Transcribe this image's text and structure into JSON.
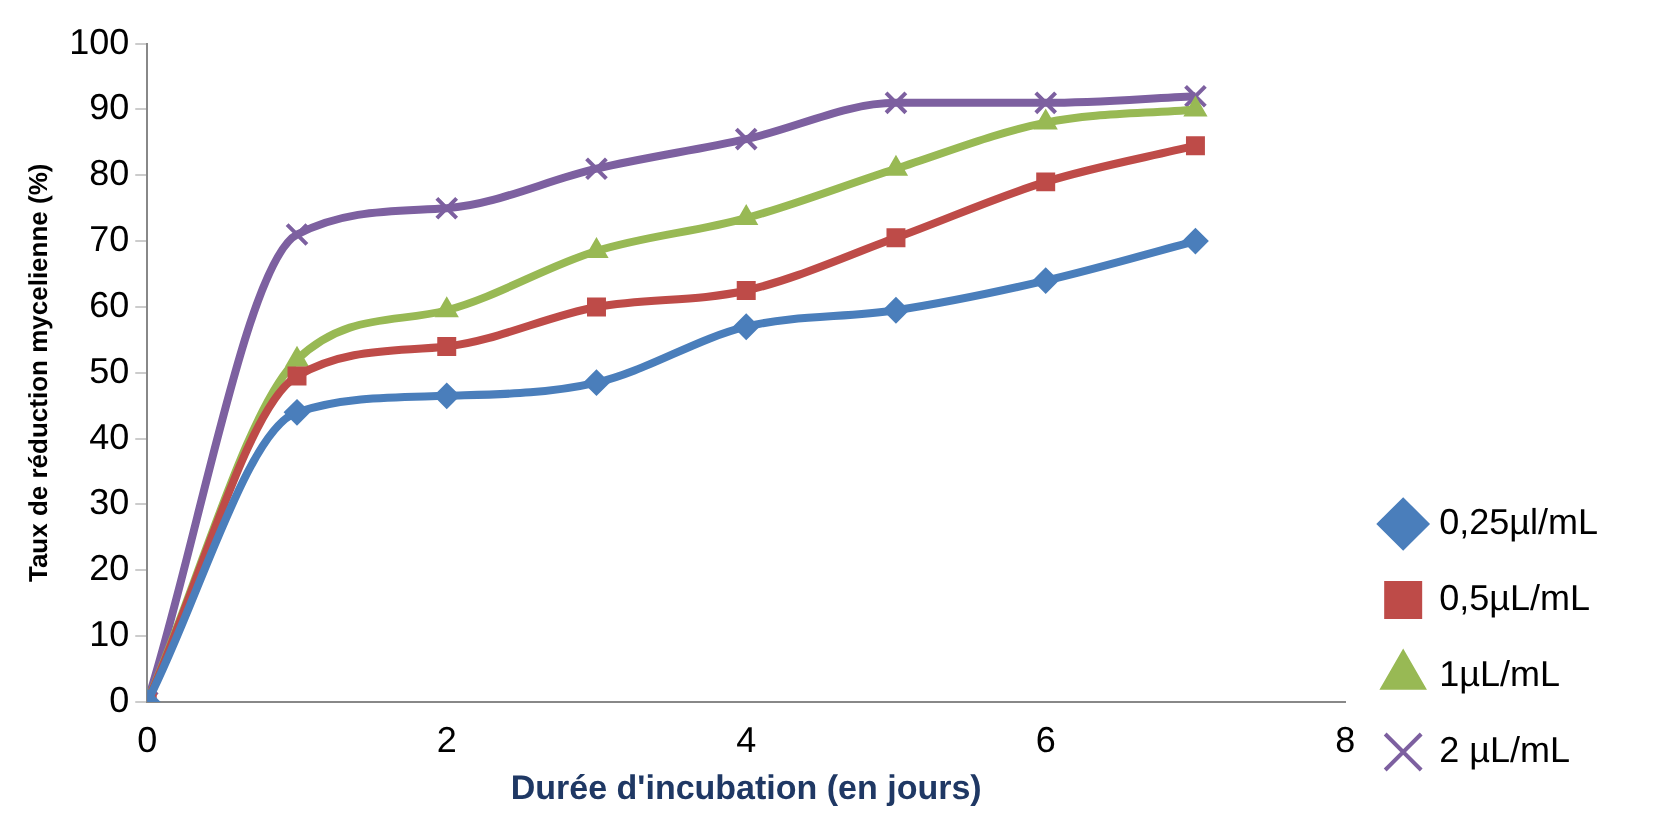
{
  "chart_data": {
    "type": "line",
    "xlabel": "Durée d'incubation (en jours)",
    "ylabel": "Taux de réduction mycelienne (%)",
    "x": [
      0,
      1,
      2,
      3,
      4,
      5,
      6,
      7
    ],
    "xlim": [
      0,
      8
    ],
    "xticks": [
      0,
      2,
      4,
      6,
      8
    ],
    "ylim": [
      0,
      100
    ],
    "yticks": [
      0,
      10,
      20,
      30,
      40,
      50,
      60,
      70,
      80,
      90,
      100
    ],
    "grid": false,
    "legend": "right",
    "series": [
      {
        "name": "0,25µl/mL",
        "color": "#4a7ebb",
        "marker": "diamond",
        "values": [
          0,
          44,
          46.5,
          48.5,
          57,
          59.5,
          64,
          70
        ]
      },
      {
        "name": "0,5µL/mL",
        "color": "#be4b48",
        "marker": "square",
        "values": [
          0,
          49.5,
          54,
          60,
          62.5,
          70.5,
          79,
          84.5
        ]
      },
      {
        "name": "1µL/mL",
        "color": "#98b954",
        "marker": "triangle",
        "values": [
          0,
          52,
          59.5,
          68.5,
          73.5,
          81,
          88,
          90
        ]
      },
      {
        "name": "2 µL/mL",
        "color": "#7d60a0",
        "marker": "cross",
        "values": [
          0,
          71,
          75,
          81,
          85.5,
          91,
          91,
          92
        ]
      }
    ]
  }
}
